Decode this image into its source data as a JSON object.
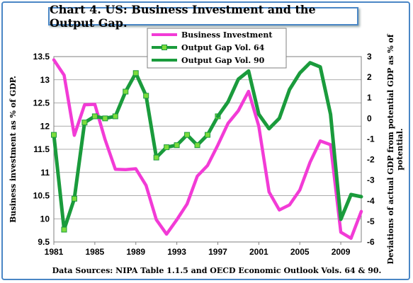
{
  "chart_data": {
    "type": "line",
    "title": "Chart 4. US: Business Investment and the Output Gap.",
    "ylabel": "Business investment as % of GDP.",
    "y2label": "Deviations of actual GDP from potential GDP as % of potential.",
    "source": "Data Sources: NIPA Table 1.1.5 and OECD Economic Outlook Vols. 64 & 90.",
    "ylim": [
      9.5,
      13.5
    ],
    "y2lim": [
      -6,
      3
    ],
    "xlim": [
      1981,
      2011
    ],
    "xticks": [
      "1981",
      "1985",
      "1989",
      "1993",
      "1997",
      "2001",
      "2005",
      "2009"
    ],
    "yticks": [
      "9.5",
      "10",
      "10.5",
      "11",
      "11.5",
      "12",
      "12.5",
      "13",
      "13.5"
    ],
    "y2ticks": [
      "-6",
      "-5",
      "-4",
      "-3",
      "-2",
      "-1",
      "0",
      "1",
      "2",
      "3"
    ],
    "grid": true,
    "legend_position": "top-center",
    "series": [
      {
        "name": "Business Investment",
        "axis": "left",
        "color": "#f23bd6",
        "marker": "none",
        "x": [
          1981,
          1982,
          1983,
          1984,
          1985,
          1986,
          1987,
          1988,
          1989,
          1990,
          1991,
          1992,
          1993,
          1994,
          1995,
          1996,
          1997,
          1998,
          1999,
          2000,
          2001,
          2002,
          2003,
          2004,
          2005,
          2006,
          2007,
          2008,
          2009,
          2010,
          2011
        ],
        "values": [
          13.43,
          13.1,
          11.8,
          12.46,
          12.47,
          11.71,
          11.07,
          11.06,
          11.08,
          10.72,
          9.98,
          9.67,
          9.98,
          10.32,
          10.92,
          11.15,
          11.59,
          12.06,
          12.33,
          12.75,
          12.0,
          10.58,
          10.19,
          10.3,
          10.62,
          11.22,
          11.68,
          11.6,
          9.71,
          9.58,
          10.16
        ]
      },
      {
        "name": "Output Gap Vol. 64",
        "axis": "right",
        "color": "#1a9b3c",
        "marker": "square",
        "x": [
          1981,
          1982,
          1983,
          1984,
          1985,
          1986,
          1987,
          1988,
          1989,
          1990,
          1991,
          1992,
          1993,
          1994,
          1995,
          1996,
          1997
        ],
        "values": [
          -0.8,
          -5.4,
          -3.9,
          -0.2,
          0.1,
          0.0,
          0.1,
          1.3,
          2.2,
          1.1,
          -1.9,
          -1.4,
          -1.3,
          -0.8,
          -1.3,
          -0.8,
          0.1
        ]
      },
      {
        "name": "Output Gap Vol. 90",
        "axis": "right",
        "color": "#1a9b3c",
        "marker": "none",
        "x": [
          1997,
          1998,
          1999,
          2000,
          2001,
          2002,
          2003,
          2004,
          2005,
          2006,
          2007,
          2008,
          2009,
          2010,
          2011
        ],
        "values": [
          0.1,
          0.8,
          1.9,
          2.3,
          0.2,
          -0.5,
          0.0,
          1.4,
          2.2,
          2.7,
          2.5,
          0.2,
          -4.9,
          -3.7,
          -3.8
        ]
      }
    ]
  }
}
